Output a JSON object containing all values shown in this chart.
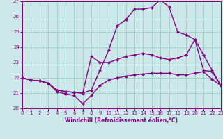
{
  "xlabel": "Windchill (Refroidissement éolien,°C)",
  "xlim": [
    0,
    23
  ],
  "ylim": [
    20,
    27
  ],
  "yticks": [
    20,
    21,
    22,
    23,
    24,
    25,
    26,
    27
  ],
  "xticks": [
    0,
    1,
    2,
    3,
    4,
    5,
    6,
    7,
    8,
    9,
    10,
    11,
    12,
    13,
    14,
    15,
    16,
    17,
    18,
    19,
    20,
    21,
    22,
    23
  ],
  "bg_color": "#cce8e8",
  "line_color": "#880088",
  "grid_color": "#99cccc",
  "line1_x": [
    0,
    1,
    2,
    3,
    4,
    5,
    6,
    7,
    8,
    9,
    10,
    11,
    12,
    13,
    14,
    15,
    16,
    17,
    18,
    19,
    20,
    21,
    22,
    23
  ],
  "line1_y": [
    22.0,
    21.85,
    21.8,
    21.65,
    21.1,
    20.95,
    20.85,
    20.3,
    20.85,
    21.5,
    21.85,
    22.0,
    22.1,
    22.2,
    22.25,
    22.3,
    22.3,
    22.3,
    22.2,
    22.2,
    22.3,
    22.4,
    21.9,
    21.5
  ],
  "line2_x": [
    0,
    1,
    2,
    3,
    4,
    5,
    6,
    7,
    8,
    9,
    10,
    11,
    12,
    13,
    14,
    15,
    16,
    17,
    18,
    19,
    20,
    21,
    22,
    23
  ],
  "line2_y": [
    22.0,
    21.85,
    21.8,
    21.65,
    21.2,
    21.1,
    21.05,
    21.0,
    23.4,
    23.0,
    23.0,
    23.2,
    23.4,
    23.5,
    23.6,
    23.5,
    23.3,
    23.2,
    23.3,
    23.5,
    24.5,
    22.5,
    22.4,
    21.5
  ],
  "line3_x": [
    0,
    1,
    2,
    3,
    4,
    5,
    6,
    7,
    8,
    9,
    10,
    11,
    12,
    13,
    14,
    15,
    16,
    17,
    18,
    19,
    20,
    21,
    22,
    23
  ],
  "line3_y": [
    22.0,
    21.85,
    21.8,
    21.65,
    21.2,
    21.1,
    21.05,
    21.0,
    21.2,
    22.5,
    23.8,
    25.4,
    25.8,
    26.5,
    26.5,
    26.6,
    27.1,
    26.65,
    25.0,
    24.8,
    24.5,
    23.5,
    22.5,
    21.5
  ],
  "marker": "D",
  "markersize": 2.5,
  "linewidth": 1.0
}
